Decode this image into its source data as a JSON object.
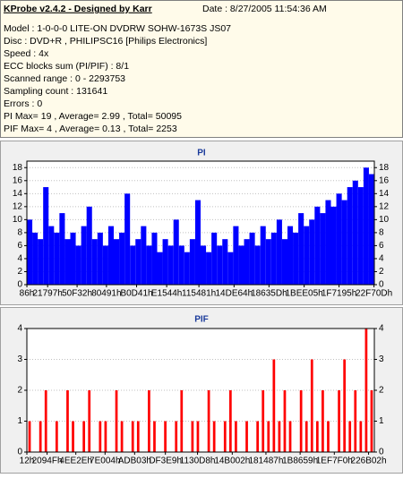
{
  "header": {
    "title": "KProbe v2.4.2 - Designed by Karr",
    "date": "Date : 8/27/2005 11:54:36 AM",
    "lines": [
      "Model : 1-0-0-0 LITE-ON DVDRW SOHW-1673S JS07",
      "Disc : DVD+R , PHILIPSC16 [Philips Electronics]",
      "Speed : 4x",
      "ECC blocks sum (PI/PIF) : 8/1",
      "Scanned range : 0 - 2293753",
      "Sampling count : 131641",
      "Errors : 0",
      "PI Max= 19 , Average= 2.99 , Total= 50095",
      "PIF Max= 4 , Average= 0.13 , Total= 2253"
    ]
  },
  "chart_data": [
    {
      "type": "bar",
      "title": "PI",
      "color": "#0000ff",
      "grid": true,
      "xlim": [
        0,
        2293753
      ],
      "ylim": [
        0,
        19
      ],
      "yticks": [
        0,
        2,
        4,
        6,
        8,
        10,
        12,
        14,
        16,
        18
      ],
      "xticks": [
        {
          "value": 134,
          "label": "86h"
        },
        {
          "value": 137111,
          "label": "21797h"
        },
        {
          "value": 331570,
          "label": "50F32h"
        },
        {
          "value": 525457,
          "label": "80491h"
        },
        {
          "value": 724289,
          "label": "B0D41h"
        },
        {
          "value": 922948,
          "label": "E1544h"
        },
        {
          "value": 1135745,
          "label": "115481h"
        },
        {
          "value": 1367652,
          "label": "14DE64h"
        },
        {
          "value": 1598301,
          "label": "18635Dh"
        },
        {
          "value": 1830405,
          "label": "1BEE05h"
        },
        {
          "value": 2060693,
          "label": "1F7195h"
        },
        {
          "value": 2291469,
          "label": "22F70Dh"
        }
      ],
      "x": [
        0,
        35840,
        71680,
        107520,
        143360,
        179200,
        215040,
        250880,
        286720,
        322560,
        358400,
        394240,
        430080,
        465920,
        501760,
        537600,
        573440,
        609280,
        645120,
        680960,
        716800,
        752640,
        788480,
        824320,
        860160,
        896000,
        931840,
        967680,
        1003520,
        1039360,
        1075200,
        1111040,
        1146880,
        1182720,
        1218560,
        1254400,
        1290240,
        1326080,
        1361920,
        1397760,
        1433600,
        1469440,
        1505280,
        1541120,
        1576960,
        1612800,
        1648640,
        1684480,
        1720320,
        1756160,
        1792000,
        1827840,
        1863680,
        1899520,
        1935360,
        1971200,
        2007040,
        2042880,
        2078720,
        2114560,
        2150400,
        2186240,
        2222080,
        2257920
      ],
      "values": [
        10,
        8,
        7,
        15,
        9,
        8,
        11,
        7,
        8,
        6,
        9,
        12,
        7,
        8,
        6,
        9,
        7,
        8,
        14,
        6,
        7,
        9,
        6,
        8,
        5,
        7,
        6,
        10,
        6,
        5,
        7,
        13,
        6,
        5,
        8,
        6,
        7,
        5,
        9,
        6,
        7,
        8,
        6,
        9,
        7,
        8,
        10,
        7,
        9,
        8,
        11,
        9,
        10,
        12,
        11,
        13,
        12,
        14,
        13,
        15,
        16,
        15,
        18,
        17
      ]
    },
    {
      "type": "bar",
      "title": "PIF",
      "color": "#ff0000",
      "grid": true,
      "xlim": [
        0,
        2293753
      ],
      "ylim": [
        0,
        4
      ],
      "yticks": [
        0,
        1,
        2,
        3,
        4
      ],
      "xticks": [
        {
          "value": 18,
          "label": "12h"
        },
        {
          "value": 133455,
          "label": "2094Fh"
        },
        {
          "value": 323118,
          "label": "4EE2Eh"
        },
        {
          "value": 516100,
          "label": "7E004h"
        },
        {
          "value": 711427,
          "label": "ADB03h"
        },
        {
          "value": 914409,
          "label": "DF3E9h"
        },
        {
          "value": 1126616,
          "label": "1130D8h"
        },
        {
          "value": 1355778,
          "label": "14B002h"
        },
        {
          "value": 1578119,
          "label": "181487h"
        },
        {
          "value": 1803865,
          "label": "1B8659h"
        },
        {
          "value": 2029552,
          "label": "1EF7F0h"
        },
        {
          "value": 2255618,
          "label": "226B02h"
        }
      ],
      "x": [
        0,
        35840,
        71680,
        107520,
        143360,
        179200,
        215040,
        250880,
        286720,
        322560,
        358400,
        394240,
        430080,
        465920,
        501760,
        537600,
        573440,
        609280,
        645120,
        680960,
        716800,
        752640,
        788480,
        824320,
        860160,
        896000,
        931840,
        967680,
        1003520,
        1039360,
        1075200,
        1111040,
        1146880,
        1182720,
        1218560,
        1254400,
        1290240,
        1326080,
        1361920,
        1397760,
        1433600,
        1469440,
        1505280,
        1541120,
        1576960,
        1612800,
        1648640,
        1684480,
        1720320,
        1756160,
        1792000,
        1827840,
        1863680,
        1899520,
        1935360,
        1971200,
        2007040,
        2042880,
        2078720,
        2114560,
        2150400,
        2186240,
        2222080,
        2257920
      ],
      "values": [
        1,
        0,
        1,
        2,
        0,
        1,
        0,
        2,
        1,
        0,
        1,
        2,
        0,
        1,
        1,
        0,
        2,
        1,
        0,
        1,
        1,
        0,
        2,
        1,
        0,
        1,
        0,
        1,
        2,
        0,
        1,
        1,
        0,
        2,
        1,
        0,
        1,
        2,
        1,
        0,
        1,
        0,
        1,
        2,
        1,
        3,
        1,
        2,
        1,
        0,
        2,
        1,
        3,
        1,
        2,
        1,
        0,
        2,
        3,
        1,
        2,
        1,
        4,
        2
      ]
    }
  ]
}
